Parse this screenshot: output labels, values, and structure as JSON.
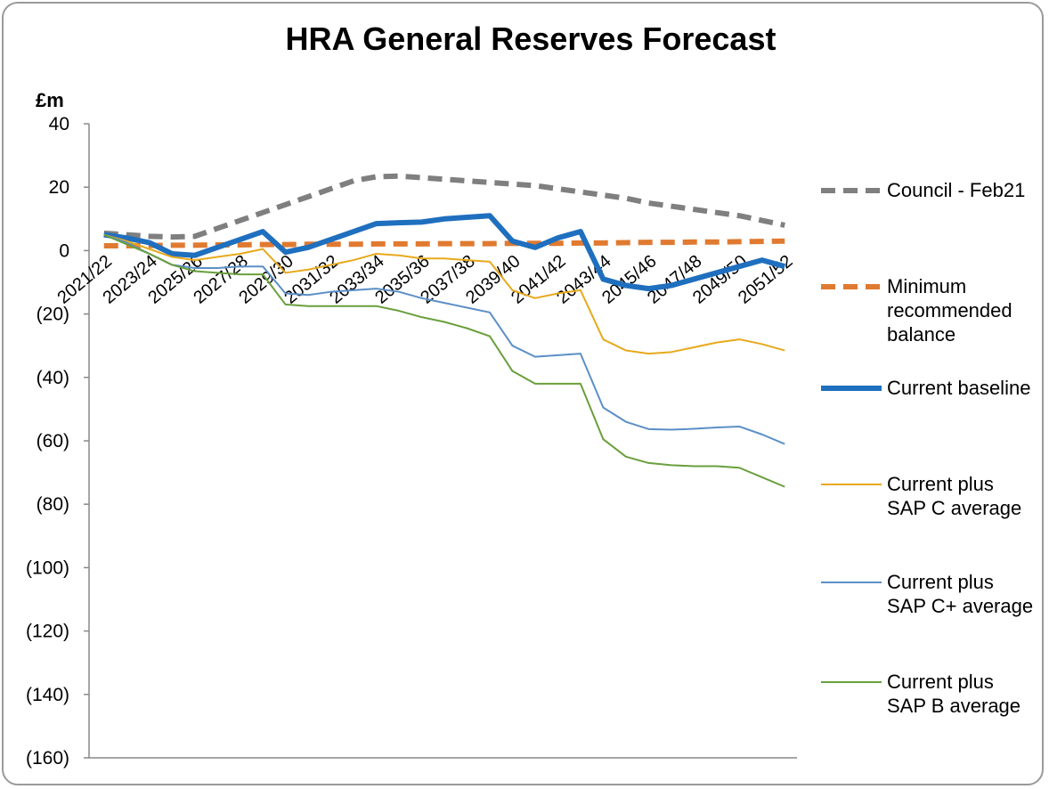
{
  "chart_data": {
    "type": "line",
    "title": "HRA General Reserves Forecast",
    "y_label": "£m",
    "categories": [
      "2021/22",
      null,
      "2023/24",
      null,
      "2025/26",
      null,
      "2027/28",
      null,
      "2029/30",
      null,
      "2031/32",
      null,
      "2033/34",
      null,
      "2035/36",
      null,
      "2037/38",
      null,
      "2039/40",
      null,
      "2041/42",
      null,
      "2043/44",
      null,
      "2045/46",
      null,
      "2047/48",
      null,
      "2049/50",
      null,
      "2051/52"
    ],
    "series": [
      {
        "name": "Council - Feb21",
        "color": "#7f7f7f",
        "line_style": "dashed",
        "line_width": 6,
        "values": [
          5.5,
          5,
          4.5,
          4.3,
          4.5,
          7,
          9.5,
          12,
          14.5,
          17,
          19.5,
          22,
          23.3,
          23.5,
          23,
          22.5,
          22,
          21.5,
          21,
          20.5,
          19.5,
          18.5,
          17.5,
          16.5,
          15,
          14,
          13,
          12,
          11,
          9.5,
          8
        ]
      },
      {
        "name": "Minimum recommended balance",
        "color": "#e07a30",
        "line_style": "dashed",
        "line_width": 6,
        "values": [
          1.5,
          1.5,
          1.6,
          1.7,
          1.7,
          1.8,
          1.8,
          1.9,
          1.9,
          2,
          2,
          2,
          2.1,
          2.1,
          2.1,
          2.2,
          2.2,
          2.2,
          2.3,
          2.3,
          2.3,
          2.4,
          2.4,
          2.5,
          2.6,
          2.6,
          2.7,
          2.7,
          2.8,
          2.9,
          3
        ]
      },
      {
        "name": "Current baseline",
        "color": "#1f6fbf",
        "line_style": "solid",
        "line_width": 6,
        "values": [
          5,
          4,
          2.5,
          -1,
          -1.5,
          1,
          3.5,
          6,
          -0.5,
          1,
          3.5,
          6,
          8.5,
          8.8,
          9,
          10,
          10.5,
          11,
          3,
          1,
          4,
          6,
          -9,
          -11,
          -12,
          -11,
          -9,
          -7,
          -5,
          -3,
          -5
        ]
      },
      {
        "name": "Current plus SAP C average",
        "color": "#e8a91c",
        "line_style": "solid",
        "line_width": 2,
        "values": [
          5,
          3,
          0.5,
          -2,
          -3,
          -2,
          -1,
          0.5,
          -7,
          -6,
          -4.5,
          -3,
          -1,
          -1.5,
          -2.5,
          -2.5,
          -3,
          -3.5,
          -12.5,
          -15,
          -13.5,
          -12.5,
          -28,
          -31.5,
          -32.5,
          -32,
          -30.5,
          -29,
          -28,
          -29.5,
          -31.5
        ]
      },
      {
        "name": "Current plus SAP C+ average",
        "color": "#5b8fc7",
        "line_style": "solid",
        "line_width": 2,
        "values": [
          5,
          2.5,
          -1,
          -4.5,
          -5.5,
          -5.5,
          -5,
          -5,
          -13.5,
          -14,
          -13,
          -12.5,
          -12,
          -13,
          -15,
          -16.5,
          -18,
          -19.5,
          -30,
          -33.5,
          -33,
          -32.5,
          -49.5,
          -54,
          -56.3,
          -56.5,
          -56.2,
          -55.8,
          -55.5,
          -58,
          -61
        ]
      },
      {
        "name": "Current plus SAP B average",
        "color": "#6a9f3c",
        "line_style": "solid",
        "line_width": 2,
        "values": [
          5,
          2,
          -1,
          -4.5,
          -6.5,
          -7,
          -7.5,
          -7.5,
          -17,
          -17.5,
          -17.5,
          -17.5,
          -17.5,
          -19,
          -21,
          -22.5,
          -24.5,
          -27,
          -38,
          -42,
          -42,
          -42,
          -59.5,
          -65,
          -67,
          -67.7,
          -68,
          -68,
          -68.5,
          -71.5,
          -74.5
        ]
      }
    ],
    "ylim": [
      -160,
      40
    ],
    "yticks": [
      40,
      20,
      0,
      {
        "value": -20,
        "label": "(20)"
      },
      {
        "value": -40,
        "label": "(40)"
      },
      {
        "value": -60,
        "label": "(60)"
      },
      {
        "value": -80,
        "label": "(80)"
      },
      {
        "value": -100,
        "label": "(100)"
      },
      {
        "value": -120,
        "label": "(120)"
      },
      {
        "value": -140,
        "label": "(140)"
      },
      {
        "value": -160,
        "label": "(160)"
      }
    ],
    "grid": false,
    "legend": "right"
  }
}
